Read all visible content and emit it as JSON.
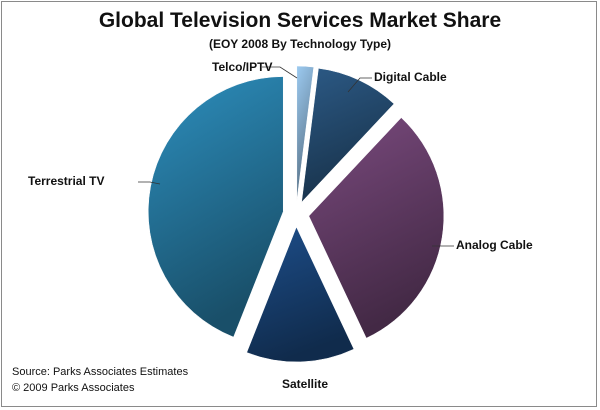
{
  "chart_data": {
    "type": "pie",
    "title": "Global Television Services Market Share",
    "subtitle": "(EOY 2008 By Technology Type)",
    "slices": [
      {
        "name": "Telco/IPTV",
        "value": 2,
        "color": "#9ccaf0"
      },
      {
        "name": "Digital Cable",
        "value": 10,
        "color": "#2c5a86"
      },
      {
        "name": "Analog Cable",
        "value": 31,
        "color": "#7a4a7e"
      },
      {
        "name": "Satellite",
        "value": 13,
        "color": "#1d4e8a"
      },
      {
        "name": "Terrestrial TV",
        "value": 44,
        "color": "#2d8fbe"
      }
    ]
  },
  "footer": {
    "source": "Source:  Parks Associates Estimates",
    "copyright": "© 2009 Parks Associates"
  }
}
